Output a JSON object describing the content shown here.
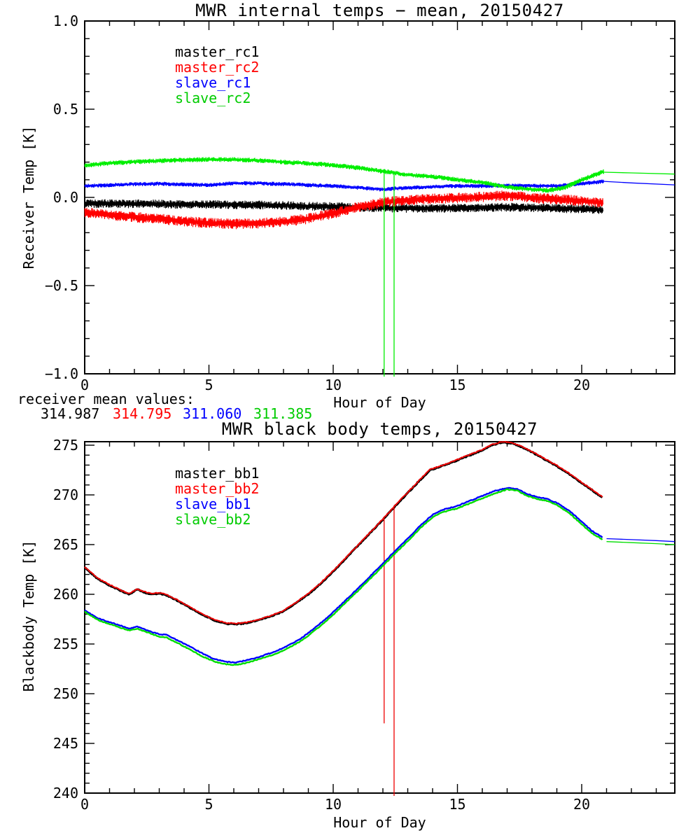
{
  "page": {
    "background": "#ffffff"
  },
  "colors": {
    "black": "#000000",
    "red": "#ff0000",
    "blue": "#0000ff",
    "green": "#00ee00"
  },
  "mean_row": {
    "label": "receiver mean values:",
    "values": [
      {
        "text": "314.987",
        "color": "#000000"
      },
      {
        "text": "314.795",
        "color": "#ff0000"
      },
      {
        "text": "311.060",
        "color": "#0000ff"
      },
      {
        "text": "311.385",
        "color": "#00cc00"
      }
    ]
  },
  "chart_data": [
    {
      "type": "line",
      "title": "MWR internal temps − mean, 20150427",
      "xlabel": "Hour of Day",
      "ylabel": "Receiver Temp [K]",
      "xlim": [
        0,
        24
      ],
      "ylim": [
        -1.0,
        1.0
      ],
      "grid": false,
      "xticks": {
        "major_values": [
          0,
          5,
          10,
          15,
          20
        ],
        "major_labels": [
          "0",
          "5",
          "10",
          "15",
          "20"
        ],
        "minor_step": 1
      },
      "yticks": {
        "major_values": [
          1.0,
          0.5,
          0.0,
          -0.5,
          -1.0
        ],
        "major_labels": [
          "1.0",
          "0.5",
          "0.0",
          "−0.5",
          "−1.0"
        ],
        "minor_step": 0.1
      },
      "legend": [
        {
          "label": "master_rc1",
          "color": "#000000"
        },
        {
          "label": "master_rc2",
          "color": "#ff0000"
        },
        {
          "label": "slave_rc1",
          "color": "#0000ff"
        },
        {
          "label": "slave_rc2",
          "color": "#00cc00"
        }
      ],
      "series": [
        {
          "name": "master_rc1",
          "color": "#000000",
          "noise": 0.025,
          "x": [
            0,
            2,
            4,
            6,
            8,
            9,
            10,
            11,
            12,
            13,
            14,
            15,
            16,
            17,
            18,
            19,
            20,
            20.85
          ],
          "y": [
            -0.035,
            -0.036,
            -0.04,
            -0.041,
            -0.045,
            -0.05,
            -0.052,
            -0.056,
            -0.06,
            -0.062,
            -0.062,
            -0.06,
            -0.058,
            -0.055,
            -0.058,
            -0.062,
            -0.066,
            -0.07
          ]
        },
        {
          "name": "master_rc2",
          "color": "#ff0000",
          "noise": 0.03,
          "x": [
            0,
            1,
            2,
            3,
            4,
            5,
            6,
            7,
            8,
            9,
            10,
            11,
            12,
            13,
            14,
            15,
            16,
            16.8,
            17.5,
            18,
            19,
            20,
            20.85
          ],
          "y": [
            -0.085,
            -0.1,
            -0.112,
            -0.122,
            -0.135,
            -0.145,
            -0.15,
            -0.147,
            -0.138,
            -0.12,
            -0.09,
            -0.055,
            -0.028,
            -0.015,
            -0.008,
            -0.003,
            0.003,
            0.01,
            0.005,
            -0.003,
            -0.01,
            -0.02,
            -0.03
          ]
        },
        {
          "name": "slave_rc1",
          "color": "#0000ff",
          "noise": 0.012,
          "x": [
            0,
            1,
            2,
            3,
            4,
            5,
            6,
            7,
            8,
            9,
            10,
            11,
            12,
            13,
            14,
            15,
            16,
            17,
            18,
            19,
            20,
            20.9
          ],
          "y": [
            0.065,
            0.07,
            0.075,
            0.078,
            0.073,
            0.07,
            0.08,
            0.08,
            0.075,
            0.07,
            0.065,
            0.055,
            0.045,
            0.055,
            0.06,
            0.065,
            0.065,
            0.068,
            0.065,
            0.065,
            0.078,
            0.091
          ],
          "tail": {
            "x": [
              20.9,
              22,
              23.74
            ],
            "y": [
              0.091,
              0.082,
              0.071
            ]
          }
        },
        {
          "name": "slave_rc2",
          "color": "#00ee00",
          "noise": 0.014,
          "x": [
            0,
            1,
            2,
            3,
            4,
            5,
            6,
            7,
            8,
            9,
            10,
            11,
            12,
            13,
            14,
            15,
            16,
            17,
            18,
            18.7,
            19.3,
            20,
            20.9
          ],
          "y": [
            0.18,
            0.195,
            0.202,
            0.207,
            0.212,
            0.215,
            0.215,
            0.21,
            0.2,
            0.193,
            0.183,
            0.168,
            0.148,
            0.128,
            0.118,
            0.1,
            0.085,
            0.058,
            0.045,
            0.04,
            0.055,
            0.1,
            0.148
          ],
          "tail": {
            "x": [
              20.9,
              22,
              23.74
            ],
            "y": [
              0.143,
              0.139,
              0.132
            ]
          }
        }
      ],
      "spikes": [
        {
          "x": 12.05,
          "y0": 0.148,
          "y1": -1.0,
          "color": "#00ee00"
        },
        {
          "x": 12.45,
          "y0": 0.146,
          "y1": -1.0,
          "color": "#00ee00"
        }
      ]
    },
    {
      "type": "line",
      "title": "MWR black body temps, 20150427",
      "xlabel": "Hour of Day",
      "ylabel": "Blackbody Temp [K]",
      "xlim": [
        0,
        24
      ],
      "ylim": [
        240,
        275
      ],
      "grid": false,
      "xticks": {
        "major_values": [
          0,
          5,
          10,
          15,
          20
        ],
        "major_labels": [
          "0",
          "5",
          "10",
          "15",
          "20"
        ],
        "minor_step": 1
      },
      "yticks": {
        "major_values": [
          240,
          245,
          250,
          255,
          260,
          265,
          270,
          275
        ],
        "major_labels": [
          "240",
          "245",
          "250",
          "255",
          "260",
          "265",
          "270",
          "275"
        ],
        "minor_step": 1
      },
      "legend": [
        {
          "label": "master_bb1",
          "color": "#000000"
        },
        {
          "label": "master_bb2",
          "color": "#ff0000"
        },
        {
          "label": "slave_bb1",
          "color": "#0000ff"
        },
        {
          "label": "slave_bb2",
          "color": "#00cc00"
        }
      ],
      "series": [
        {
          "name": "master_bb1",
          "color": "#000000",
          "noise": 0.05,
          "x": [
            0,
            0.5,
            1,
            1.5,
            1.8,
            2.1,
            2.4,
            2.7,
            3.0,
            3.3,
            3.7,
            4.2,
            4.7,
            5.2,
            5.7,
            6.1,
            6.5,
            7,
            7.5,
            8,
            8.6,
            9,
            9.5,
            10,
            10.5,
            11,
            11.5,
            12,
            12.5,
            13,
            13.5,
            13.9,
            14.5,
            15,
            15.5,
            16,
            16.4,
            16.8,
            17.2,
            17.6,
            18,
            18.5,
            19,
            19.5,
            20,
            20.4,
            20.85
          ],
          "y": [
            262.7,
            261.6,
            260.9,
            260.3,
            260.0,
            260.5,
            260.2,
            260.0,
            260.1,
            259.9,
            259.4,
            258.7,
            258.0,
            257.4,
            257.05,
            257.0,
            257.1,
            257.4,
            257.8,
            258.3,
            259.3,
            260.0,
            261.1,
            262.3,
            263.6,
            264.9,
            266.2,
            267.5,
            268.9,
            270.2,
            271.5,
            272.5,
            273.0,
            273.5,
            274.0,
            274.5,
            275.0,
            275.3,
            275.2,
            274.8,
            274.3,
            273.6,
            272.9,
            272.1,
            271.2,
            270.5,
            269.7
          ]
        },
        {
          "name": "master_bb2",
          "color": "#ee0000",
          "noise": 0.05,
          "x": [
            0,
            0.5,
            1,
            1.5,
            1.8,
            2.1,
            2.4,
            2.7,
            3.0,
            3.3,
            3.7,
            4.2,
            4.7,
            5.2,
            5.7,
            6.1,
            6.5,
            7,
            7.5,
            8,
            8.6,
            9,
            9.5,
            10,
            10.5,
            11,
            11.5,
            12,
            12.5,
            13,
            13.5,
            13.9,
            14.5,
            15,
            15.5,
            16,
            16.4,
            16.8,
            17.2,
            17.6,
            18,
            18.5,
            19,
            19.5,
            20,
            20.4,
            20.85
          ],
          "y": [
            262.7,
            261.6,
            260.9,
            260.3,
            260.0,
            260.5,
            260.2,
            260.0,
            260.1,
            259.9,
            259.4,
            258.7,
            258.0,
            257.4,
            257.05,
            257.0,
            257.1,
            257.4,
            257.8,
            258.3,
            259.3,
            260.0,
            261.1,
            262.3,
            263.6,
            264.9,
            266.2,
            267.5,
            268.9,
            270.2,
            271.5,
            272.5,
            273.0,
            273.5,
            274.0,
            274.5,
            275.0,
            275.3,
            275.2,
            274.8,
            274.3,
            273.6,
            272.9,
            272.1,
            271.2,
            270.5,
            269.7
          ]
        },
        {
          "name": "slave_bb1",
          "color": "#0000ff",
          "noise": 0.04,
          "x": [
            0,
            0.5,
            1,
            1.5,
            1.8,
            2.1,
            2.4,
            2.7,
            3.0,
            3.3,
            3.7,
            4.2,
            4.7,
            5.2,
            5.7,
            6.1,
            6.5,
            7,
            7.5,
            8,
            8.6,
            9,
            9.5,
            10,
            10.5,
            11,
            11.5,
            12,
            12.5,
            13,
            13.5,
            14,
            14.4,
            15,
            15.5,
            16,
            16.5,
            17,
            17.4,
            17.8,
            18.2,
            18.6,
            19,
            19.5,
            20,
            20.4,
            20.85
          ],
          "y": [
            258.4,
            257.6,
            257.2,
            256.8,
            256.55,
            256.75,
            256.5,
            256.2,
            256.0,
            255.9,
            255.4,
            254.8,
            254.1,
            253.5,
            253.2,
            253.15,
            253.35,
            253.7,
            254.1,
            254.6,
            255.4,
            256.1,
            257.1,
            258.2,
            259.4,
            260.6,
            261.85,
            263.1,
            264.4,
            265.6,
            266.9,
            268.0,
            268.5,
            268.9,
            269.4,
            269.9,
            270.4,
            270.7,
            270.6,
            270.1,
            269.8,
            269.6,
            269.2,
            268.4,
            267.3,
            266.4,
            265.7
          ],
          "tail": {
            "x": [
              21.0,
              22,
              23,
              23.74
            ],
            "y": [
              265.6,
              265.5,
              265.4,
              265.3
            ]
          }
        },
        {
          "name": "slave_bb2",
          "color": "#00dd00",
          "noise": 0.04,
          "x": [
            0,
            0.5,
            1,
            1.5,
            1.8,
            2.1,
            2.4,
            2.7,
            3.0,
            3.3,
            3.7,
            4.2,
            4.7,
            5.2,
            5.7,
            6.1,
            6.5,
            7,
            7.5,
            8,
            8.6,
            9,
            9.5,
            10,
            10.5,
            11,
            11.5,
            12,
            12.5,
            13,
            13.5,
            14,
            14.4,
            15,
            15.5,
            16,
            16.5,
            17,
            17.4,
            17.8,
            18.2,
            18.6,
            19,
            19.5,
            20,
            20.4,
            20.85
          ],
          "y": [
            258.25,
            257.45,
            257.0,
            256.6,
            256.35,
            256.55,
            256.3,
            256.0,
            255.75,
            255.65,
            255.15,
            254.5,
            253.8,
            253.25,
            252.95,
            252.9,
            253.1,
            253.45,
            253.85,
            254.35,
            255.15,
            255.85,
            256.85,
            257.95,
            259.15,
            260.35,
            261.6,
            262.85,
            264.15,
            265.35,
            266.65,
            267.75,
            268.25,
            268.65,
            269.15,
            269.65,
            270.15,
            270.55,
            270.45,
            269.9,
            269.6,
            269.4,
            269.0,
            268.15,
            267.05,
            266.15,
            265.5
          ],
          "tail": {
            "x": [
              21.0,
              22,
              23,
              23.74
            ],
            "y": [
              265.3,
              265.2,
              265.1,
              265.0
            ]
          }
        }
      ],
      "spikes": [
        {
          "x": 12.05,
          "y0": 267.6,
          "y1": 247.3,
          "color": "#ee0000"
        },
        {
          "x": 12.45,
          "y0": 268.7,
          "y1": 240.0,
          "color": "#ee0000"
        }
      ]
    }
  ]
}
